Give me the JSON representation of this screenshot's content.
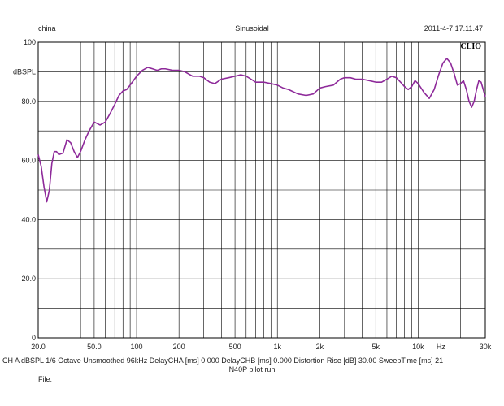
{
  "header": {
    "left": "china",
    "center": "Sinusoidal",
    "right": "2011-4-7 17.11.47"
  },
  "brand": "CLIO",
  "footer": {
    "settings": "CH A   dBSPL   1/6 Octave   Unsmoothed   96kHz   DelayCHA [ms] 0.000   DelayCHB [ms] 0.000   Distortion Rise [dB] 30.00   SweepTime [ms] 21",
    "note": "N40P pilot run",
    "file_label": "File:"
  },
  "colors": {
    "curve": "#8e2a9a",
    "grid": "#000000",
    "background": "#ffffff"
  },
  "chart_data": {
    "type": "line",
    "title": "",
    "xlabel": "Hz",
    "ylabel": "dBSPL",
    "xscale": "log",
    "xlim": [
      20,
      30000
    ],
    "ylim": [
      0,
      100
    ],
    "grid": true,
    "x_ticks": [
      "20.0",
      "50.0",
      "100",
      "200",
      "500",
      "1k",
      "2k",
      "5k",
      "10k",
      "Hz",
      "30k"
    ],
    "y_ticks": [
      "0",
      "20.0",
      "40.0",
      "60.0",
      "80.0",
      "dBSPL",
      "100"
    ],
    "series": [
      {
        "x": [
          20,
          21,
          22,
          23,
          24,
          25,
          26,
          27,
          28,
          30,
          32,
          34,
          36,
          38,
          40,
          43,
          46,
          50,
          55,
          60,
          65,
          70,
          75,
          80,
          85,
          90,
          100,
          110,
          120,
          130,
          140,
          150,
          160,
          180,
          200,
          220,
          250,
          280,
          300,
          330,
          360,
          400,
          450,
          500,
          550,
          600,
          650,
          700,
          800,
          900,
          1000,
          1100,
          1200,
          1400,
          1600,
          1800,
          2000,
          2200,
          2500,
          2800,
          3000,
          3300,
          3600,
          4000,
          4500,
          5000,
          5500,
          6000,
          6500,
          7000,
          7500,
          8000,
          8500,
          9000,
          9500,
          10000,
          10500,
          11000,
          12000,
          13000,
          14000,
          15000,
          16000,
          17000,
          18000,
          19000,
          20000,
          21000,
          22000,
          23000,
          24000,
          25000,
          26000,
          27000,
          28000,
          29000,
          30000
        ],
        "y": [
          62,
          58,
          51,
          46,
          50,
          59,
          63,
          63,
          62,
          62.5,
          67,
          66,
          63,
          61,
          63,
          67,
          70,
          73,
          72,
          73,
          76,
          79,
          82,
          83.5,
          84,
          85.5,
          88.5,
          90.5,
          91.5,
          91,
          90.5,
          91,
          91,
          90.5,
          90.5,
          90,
          88.5,
          88.5,
          88,
          86.5,
          86,
          87.5,
          88,
          88.5,
          89,
          88.5,
          87.5,
          86.5,
          86.5,
          86,
          85.5,
          84.5,
          84,
          82.5,
          82,
          82.5,
          84.5,
          85,
          85.5,
          87.5,
          88,
          88,
          87.5,
          87.5,
          87,
          86.5,
          86.5,
          87.5,
          88.5,
          88,
          86.5,
          85,
          84,
          85,
          87,
          86,
          84.5,
          83,
          81,
          84,
          89,
          93,
          94.5,
          93,
          89.5,
          85.5,
          86,
          87,
          84,
          80,
          78,
          80,
          84,
          87,
          86.5,
          84,
          81.5
        ]
      }
    ]
  }
}
